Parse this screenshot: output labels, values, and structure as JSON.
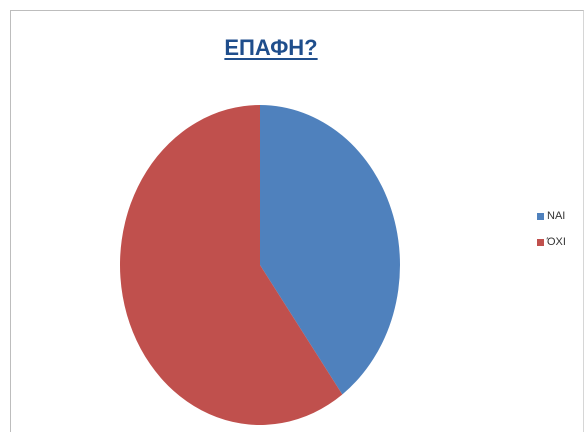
{
  "chart_data": {
    "type": "pie",
    "title": "ΕΠΑΦΗ?",
    "categories": [
      "ΝΑΙ",
      "ΌΧΙ"
    ],
    "values": [
      40,
      60
    ],
    "colors": [
      "#4f81bd",
      "#c0504d"
    ],
    "legend_position": "right"
  }
}
